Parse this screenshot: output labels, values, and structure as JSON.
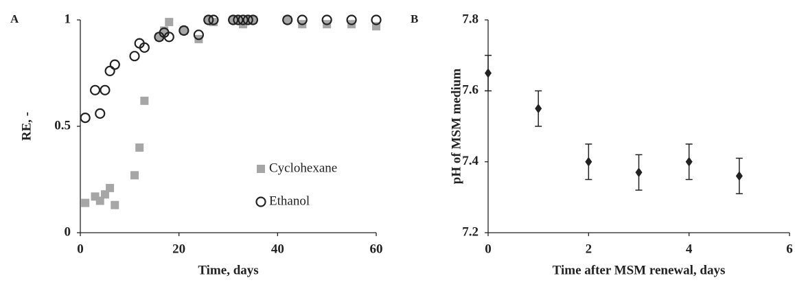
{
  "chart_data": [
    {
      "type": "scatter",
      "panel_label": "A",
      "xlabel": "Time, days",
      "ylabel": "RE, -",
      "xlim": [
        0,
        60
      ],
      "xticks": [
        0,
        20,
        40,
        60
      ],
      "ylim": [
        0,
        1
      ],
      "yticks": [
        0,
        0.5,
        1
      ],
      "legend": "lower right",
      "series": [
        {
          "name": "Cyclohexane",
          "color": "#a6a6a6",
          "marker": "square",
          "x": [
            1,
            3,
            4,
            5,
            6,
            7,
            11,
            12,
            13,
            16,
            17,
            18,
            21,
            24,
            26,
            27,
            31,
            32,
            33,
            34,
            35,
            42,
            45,
            50,
            55,
            60
          ],
          "values": [
            0.14,
            0.17,
            0.15,
            0.18,
            0.21,
            0.13,
            0.27,
            0.4,
            0.62,
            0.92,
            0.95,
            0.99,
            0.95,
            0.91,
            1,
            0.99,
            1,
            1,
            0.98,
            1,
            1,
            1,
            0.98,
            0.98,
            0.98,
            0.97
          ]
        },
        {
          "name": "Ethanol",
          "color": "#222222",
          "marker": "circle",
          "x": [
            1,
            3,
            4,
            5,
            6,
            7,
            11,
            12,
            13,
            16,
            17,
            18,
            21,
            24,
            26,
            27,
            31,
            32,
            33,
            34,
            35,
            42,
            45,
            50,
            55,
            60
          ],
          "values": [
            0.54,
            0.67,
            0.56,
            0.67,
            0.76,
            0.79,
            0.83,
            0.89,
            0.87,
            0.92,
            0.94,
            0.92,
            0.95,
            0.93,
            1,
            1,
            1,
            1,
            1,
            1,
            1,
            1,
            1,
            1,
            1,
            1
          ]
        }
      ]
    },
    {
      "type": "errorbar",
      "panel_label": "B",
      "xlabel": "Time after MSM renewal, days",
      "ylabel": "pH of MSM medium",
      "xlim": [
        0,
        6
      ],
      "xticks": [
        0,
        2,
        4,
        6
      ],
      "ylim": [
        7.2,
        7.8
      ],
      "yticks": [
        7.2,
        7.4,
        7.6,
        7.8
      ],
      "color": "#222222",
      "marker": "diamond",
      "x": [
        0,
        1,
        2,
        3,
        4,
        5
      ],
      "values": [
        7.65,
        7.55,
        7.4,
        7.37,
        7.4,
        7.36
      ],
      "errors": [
        0.05,
        0.05,
        0.05,
        0.05,
        0.05,
        0.05
      ]
    }
  ]
}
